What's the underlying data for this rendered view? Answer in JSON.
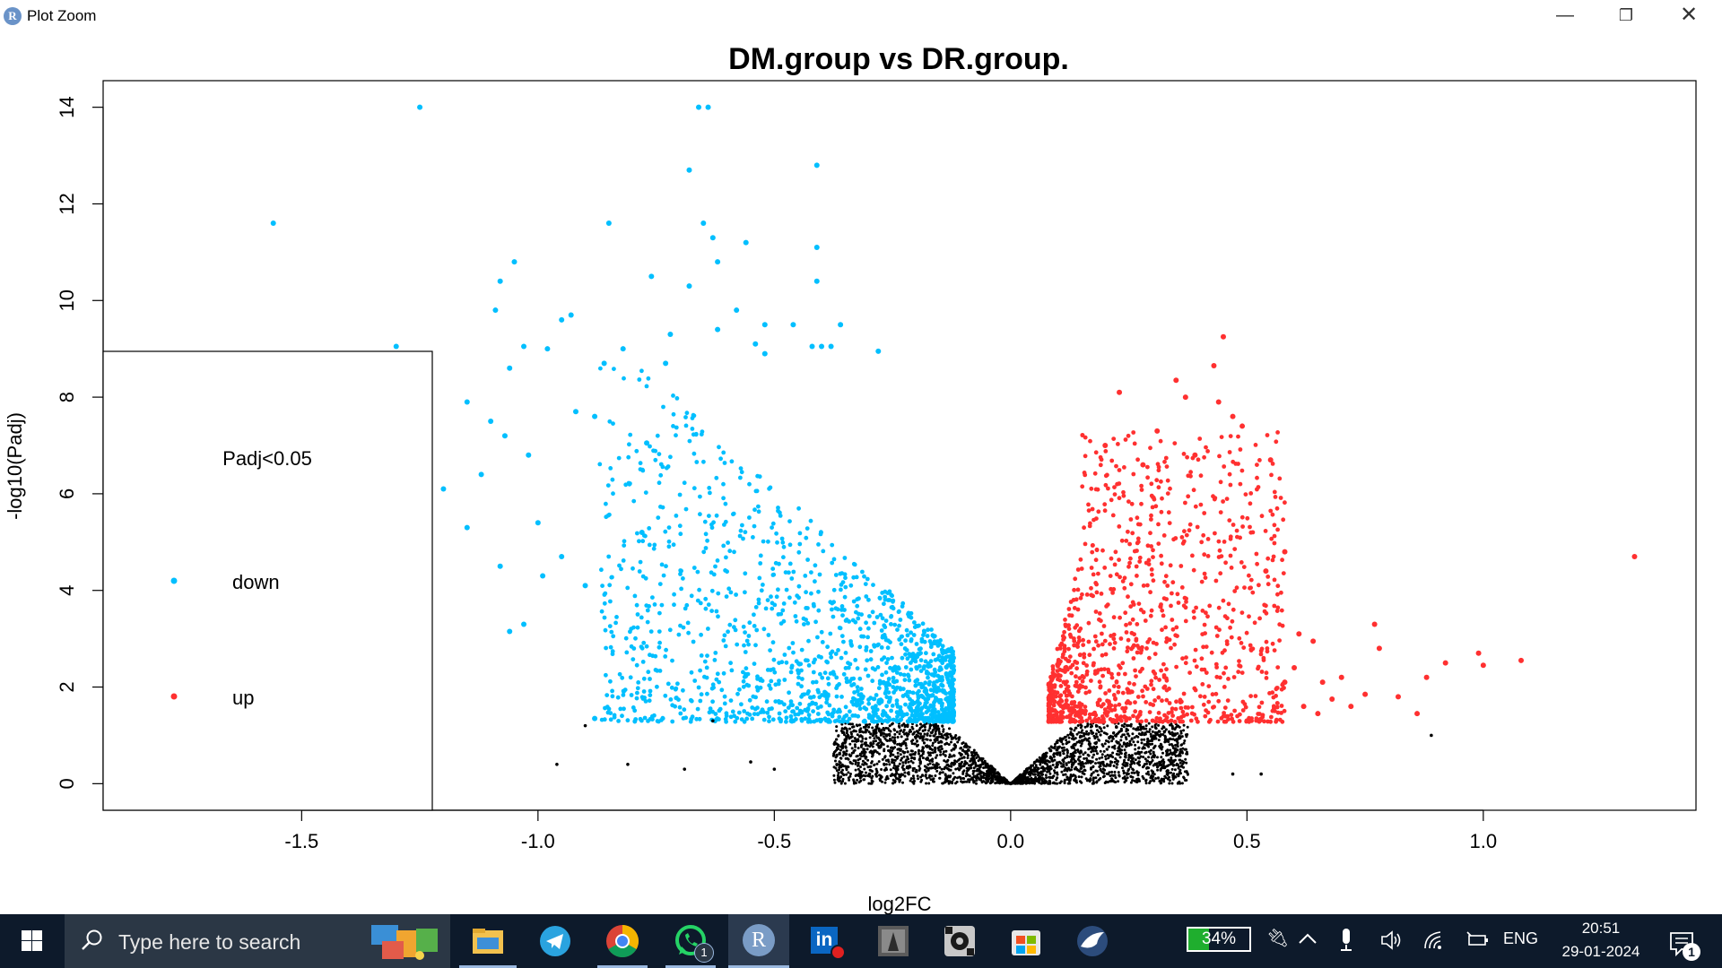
{
  "window": {
    "app_logo": "R",
    "title": "Plot Zoom",
    "controls": {
      "minimize": "—",
      "restore": "❐",
      "close": "✕"
    }
  },
  "chart_data": {
    "type": "scatter",
    "title": "DM.group vs DR.group.",
    "xlabel": "log2FC",
    "ylabel": "-log10(Padj)",
    "xlim": [
      -1.92,
      1.45
    ],
    "ylim": [
      -0.55,
      14.55
    ],
    "x_ticks": [
      -1.5,
      -1.0,
      -0.5,
      0.0,
      0.5,
      1.0
    ],
    "x_tick_labels": [
      "-1.5",
      "-1.0",
      "-0.5",
      "0.0",
      "0.5",
      "1.0"
    ],
    "y_ticks": [
      0,
      2,
      4,
      6,
      8,
      10,
      12,
      14
    ],
    "y_tick_labels": [
      "0",
      "2",
      "4",
      "6",
      "8",
      "10",
      "12",
      "14"
    ],
    "grid": false,
    "legend": {
      "placement": "left",
      "title": "Padj<0.05",
      "entries": [
        {
          "label": "down",
          "color": "#00bfff"
        },
        {
          "label": "up",
          "color": "#ff3030"
        }
      ]
    },
    "series": [
      {
        "color": "#00bfff",
        "points": [
          [
            -1.25,
            14.0
          ],
          [
            -0.66,
            14.0
          ],
          [
            -0.64,
            14.0
          ],
          [
            -1.56,
            11.6
          ],
          [
            -0.68,
            12.7
          ],
          [
            -0.41,
            12.8
          ],
          [
            -0.65,
            11.6
          ],
          [
            -0.63,
            11.3
          ],
          [
            -0.56,
            11.2
          ],
          [
            -0.41,
            11.1
          ],
          [
            -0.85,
            11.6
          ],
          [
            -1.05,
            10.8
          ],
          [
            -1.08,
            10.4
          ],
          [
            -0.76,
            10.5
          ],
          [
            -0.68,
            10.3
          ],
          [
            -0.41,
            10.4
          ],
          [
            -0.62,
            10.8
          ],
          [
            -1.09,
            9.8
          ],
          [
            -0.93,
            9.7
          ],
          [
            -0.95,
            9.6
          ],
          [
            -0.58,
            9.8
          ],
          [
            -0.52,
            9.5
          ],
          [
            -0.46,
            9.5
          ],
          [
            -0.36,
            9.5
          ],
          [
            -0.72,
            9.3
          ],
          [
            -0.62,
            9.4
          ],
          [
            -0.54,
            9.1
          ],
          [
            -1.3,
            9.05
          ],
          [
            -1.03,
            9.05
          ],
          [
            -0.98,
            9.0
          ],
          [
            -0.82,
            9.0
          ],
          [
            -0.42,
            9.05
          ],
          [
            -0.4,
            9.05
          ],
          [
            -0.38,
            9.05
          ],
          [
            -0.28,
            8.95
          ],
          [
            -0.86,
            8.7
          ],
          [
            -1.06,
            8.6
          ],
          [
            -0.73,
            8.7
          ],
          [
            -0.52,
            8.9
          ],
          [
            -1.15,
            7.9
          ],
          [
            -0.88,
            7.6
          ],
          [
            -0.92,
            7.7
          ],
          [
            -1.1,
            7.5
          ],
          [
            -1.07,
            7.2
          ],
          [
            -0.77,
            7.05
          ],
          [
            -1.02,
            6.8
          ],
          [
            -1.12,
            6.4
          ],
          [
            -1.15,
            5.3
          ],
          [
            -1.06,
            3.15
          ],
          [
            -1.03,
            3.3
          ],
          [
            -0.99,
            4.3
          ],
          [
            -0.88,
            1.35
          ],
          [
            -1.2,
            6.1
          ],
          [
            -1.08,
            4.5
          ],
          [
            -0.78,
            5.2
          ],
          [
            -1.0,
            5.4
          ],
          [
            -0.95,
            4.7
          ],
          [
            -0.9,
            4.1
          ]
        ]
      },
      {
        "color": "#ff3030",
        "points": [
          [
            1.32,
            4.7
          ],
          [
            0.45,
            9.25
          ],
          [
            0.43,
            8.65
          ],
          [
            0.23,
            8.1
          ],
          [
            0.35,
            8.35
          ],
          [
            0.37,
            8.0
          ],
          [
            0.44,
            7.9
          ],
          [
            0.47,
            7.6
          ],
          [
            0.49,
            7.4
          ],
          [
            0.55,
            6.7
          ],
          [
            0.58,
            4.8
          ],
          [
            0.54,
            4.4
          ],
          [
            0.61,
            3.1
          ],
          [
            0.64,
            2.95
          ],
          [
            0.77,
            3.3
          ],
          [
            0.78,
            2.8
          ],
          [
            0.88,
            2.2
          ],
          [
            0.92,
            2.5
          ],
          [
            0.99,
            2.7
          ],
          [
            1.0,
            2.45
          ],
          [
            1.08,
            2.55
          ],
          [
            0.86,
            1.45
          ],
          [
            0.82,
            1.8
          ],
          [
            0.75,
            1.85
          ],
          [
            0.7,
            2.2
          ],
          [
            0.66,
            2.1
          ],
          [
            0.2,
            7.0
          ],
          [
            0.31,
            7.3
          ],
          [
            0.28,
            6.6
          ],
          [
            0.39,
            6.8
          ],
          [
            0.6,
            2.4
          ],
          [
            0.58,
            2.1
          ],
          [
            0.62,
            1.6
          ],
          [
            0.65,
            1.45
          ],
          [
            0.68,
            1.75
          ],
          [
            0.72,
            1.6
          ]
        ]
      },
      {
        "color": "#000000",
        "points": [
          [
            -0.96,
            0.4
          ],
          [
            -0.81,
            0.4
          ],
          [
            -0.69,
            0.3
          ],
          [
            -0.9,
            1.2
          ],
          [
            -0.63,
            1.3
          ],
          [
            0.89,
            1.0
          ],
          [
            0.47,
            0.2
          ],
          [
            0.53,
            0.2
          ],
          [
            -0.55,
            0.45
          ],
          [
            -0.5,
            0.3
          ],
          [
            -0.32,
            0.2
          ],
          [
            0.0,
            0.0
          ]
        ]
      }
    ]
  },
  "taskbar": {
    "search_placeholder": "Type here to search",
    "apps": [
      {
        "name": "file-explorer"
      },
      {
        "name": "telegram"
      },
      {
        "name": "chrome"
      },
      {
        "name": "whatsapp",
        "badge": "1"
      },
      {
        "name": "r-gui",
        "label": "R"
      },
      {
        "name": "linkedin",
        "label": "in"
      },
      {
        "name": "media-app"
      },
      {
        "name": "settings-app"
      },
      {
        "name": "microsoft-store"
      },
      {
        "name": "bird-app"
      }
    ],
    "tray": {
      "battery": "34%",
      "battery_level": 0.34,
      "language": "ENG",
      "time": "20:51",
      "date": "29-01-2024",
      "notification_count": "1"
    }
  }
}
